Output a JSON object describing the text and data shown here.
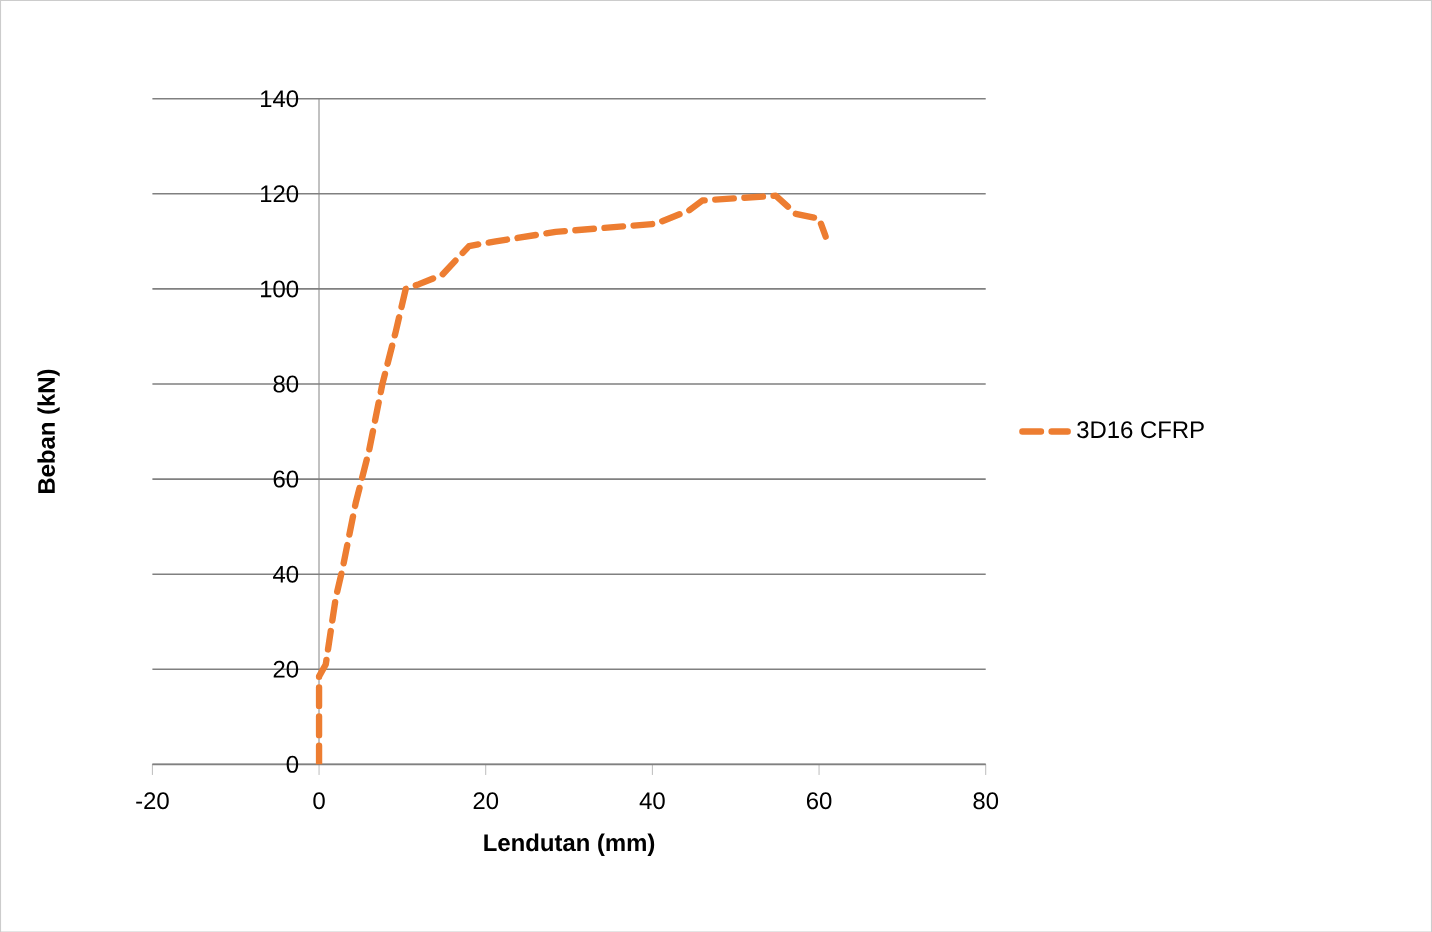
{
  "chart_data": {
    "type": "line",
    "xlabel": "Lendutan (mm)",
    "ylabel": "Beban (kN)",
    "xlim": [
      -20,
      80
    ],
    "xticks": [
      -20,
      0,
      20,
      40,
      60,
      80
    ],
    "ylim": [
      0,
      140
    ],
    "yticks": [
      0,
      20,
      40,
      60,
      80,
      100,
      120,
      140
    ],
    "grid": "y",
    "legend": "right",
    "line_style": "dashed",
    "marker": "none",
    "series": [
      {
        "name": "3D16 CFRP",
        "color": "#ed7d31",
        "x": [
          0,
          0,
          0.8,
          2,
          2.8,
          4.4,
          6,
          7.6,
          9.2,
          10.4,
          12,
          14.8,
          18,
          21.2,
          28.4,
          40.4,
          44.4,
          46,
          54.8,
          57.2,
          60,
          60.8
        ],
        "values": [
          0,
          18.5,
          21,
          35,
          41,
          55,
          66,
          80,
          91,
          100,
          101,
          103,
          109,
          110,
          112,
          113.7,
          116.5,
          118.6,
          119.6,
          115.8,
          114.8,
          111
        ]
      }
    ]
  }
}
